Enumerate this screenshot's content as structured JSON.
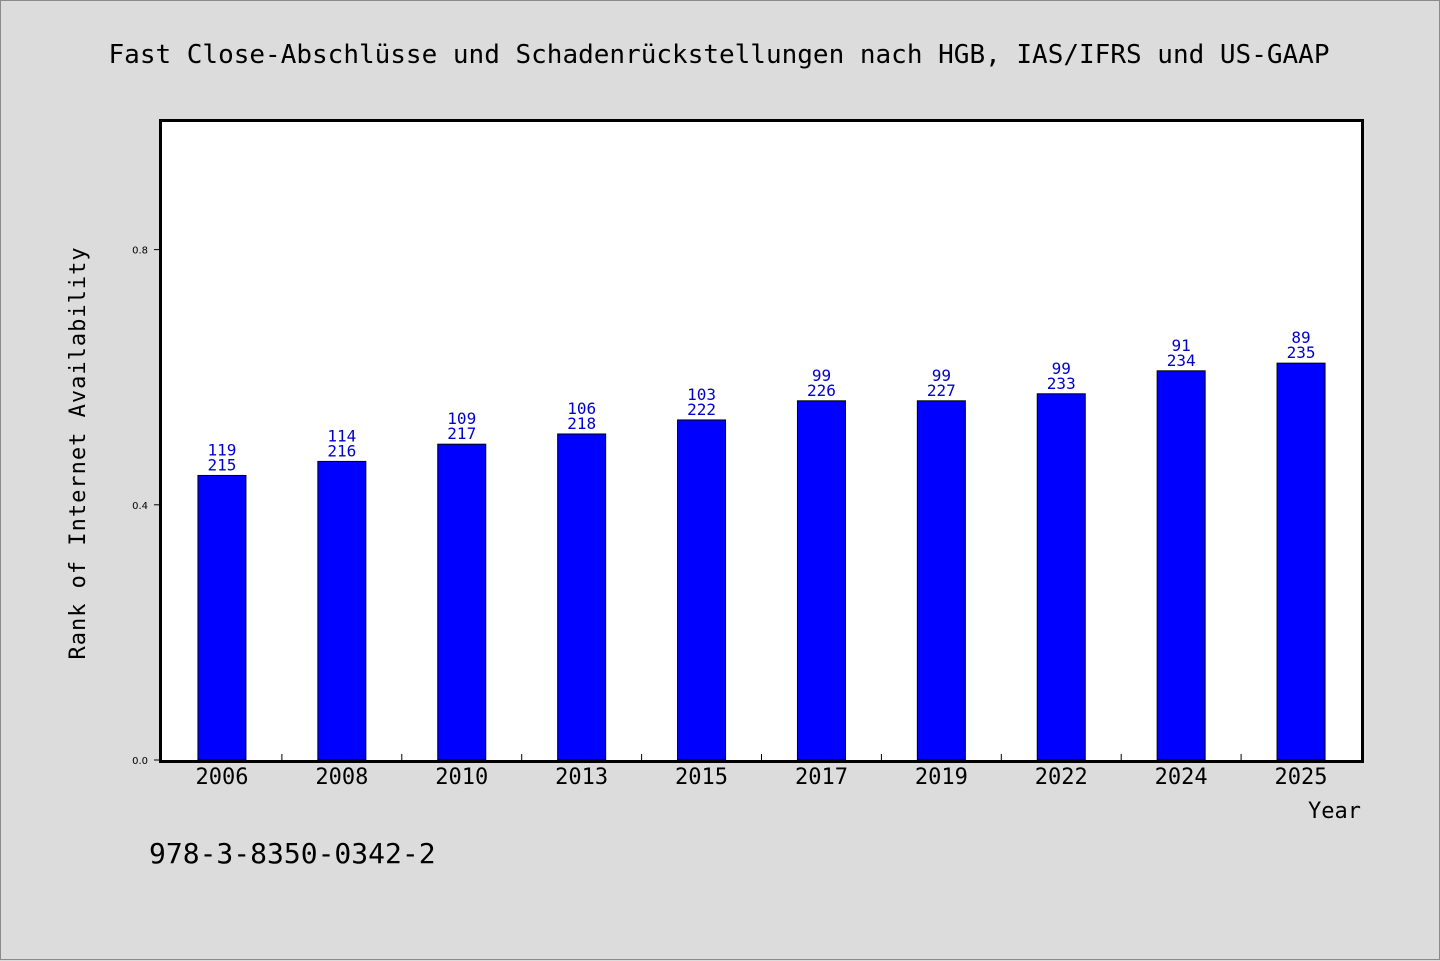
{
  "colors": {
    "bar": "#0000ff",
    "data_label": "#0000cc",
    "background": "#dcdcdc",
    "plot_background": "#ffffff"
  },
  "footer": {
    "isbn": "978-3-8350-0342-2"
  },
  "chart_data": {
    "type": "bar",
    "title": "Fast Close-Abschlüsse und Schadenrückstellungen nach HGB, IAS/IFRS und US-GAAP",
    "xlabel": "Year",
    "ylabel": "Rank of Internet Availability",
    "ylim": [
      0,
      1.0
    ],
    "yticks": [
      0.0,
      0.4,
      0.8
    ],
    "ytick_labels": [
      "0.0",
      "0.4",
      "0.8"
    ],
    "grid": false,
    "categories": [
      "2006",
      "2008",
      "2010",
      "2013",
      "2015",
      "2017",
      "2019",
      "2022",
      "2024",
      "2025"
    ],
    "values": [
      0.446,
      0.468,
      0.495,
      0.511,
      0.533,
      0.563,
      0.563,
      0.574,
      0.61,
      0.622
    ],
    "label_top": [
      "119",
      "114",
      "109",
      "106",
      "103",
      "99",
      "99",
      "99",
      "91",
      "89"
    ],
    "label_bottom": [
      "215",
      "216",
      "217",
      "218",
      "222",
      "226",
      "227",
      "233",
      "234",
      "235"
    ]
  }
}
